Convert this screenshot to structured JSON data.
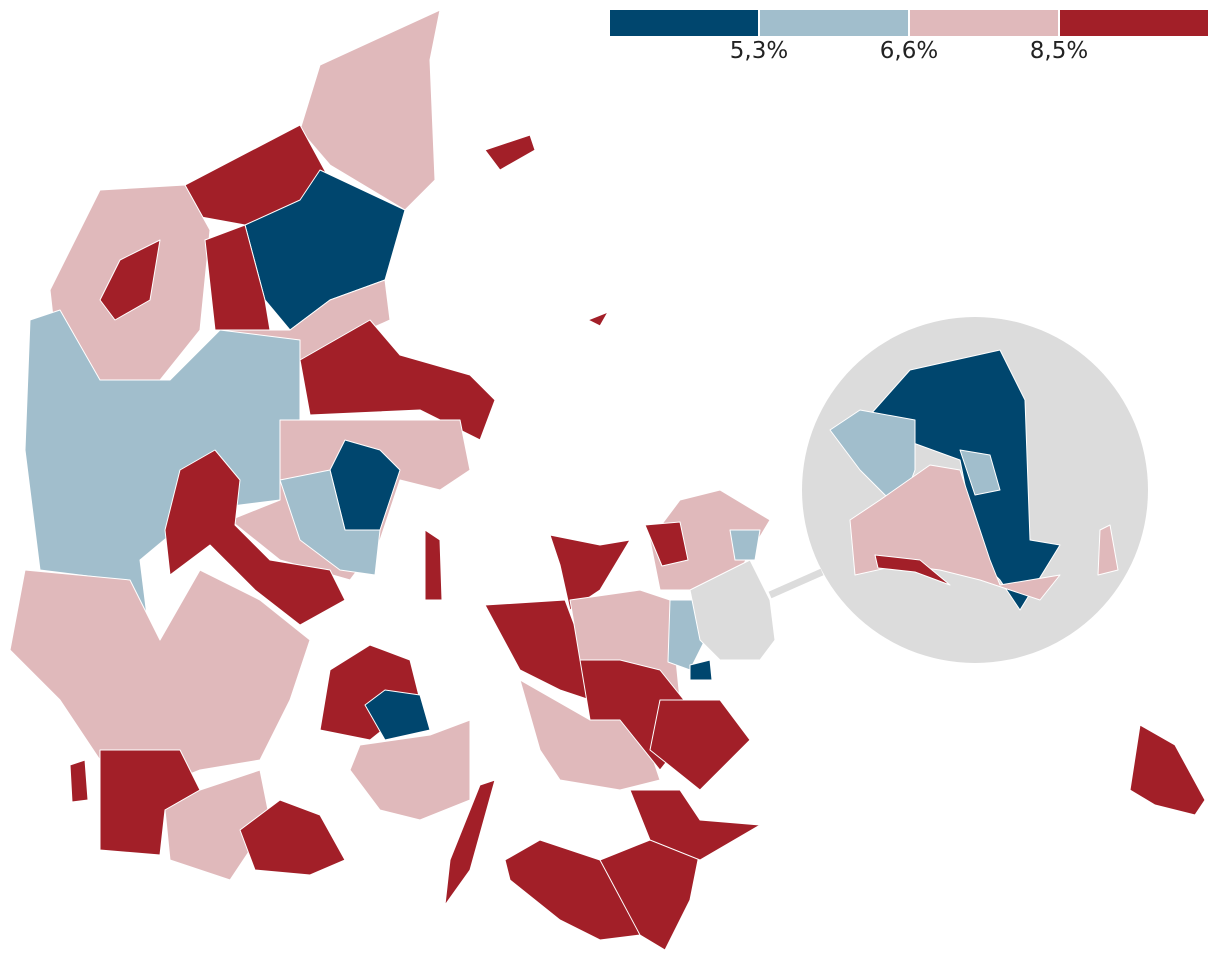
{
  "legend": {
    "colors": [
      "#00466e",
      "#a1becc",
      "#e0b9bb",
      "#a21f28"
    ],
    "breaks": [
      "5,3%",
      "6,6%",
      "8,5%"
    ]
  },
  "map": {
    "inset_color": "#dcdcdc"
  }
}
